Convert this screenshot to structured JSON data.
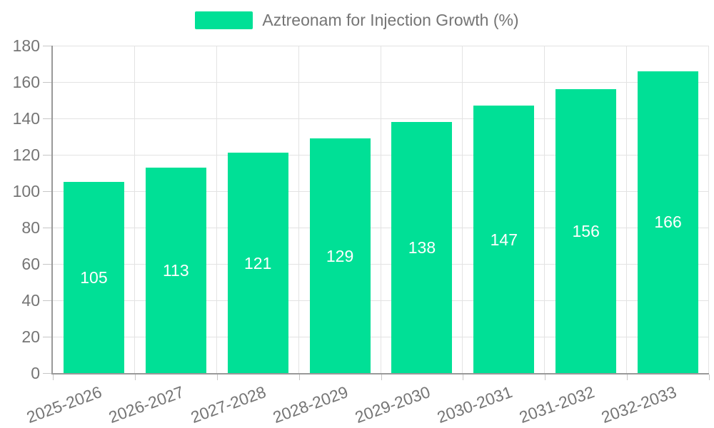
{
  "legend": {
    "label": "Aztreonam for Injection Growth (%)"
  },
  "chart_data": {
    "type": "bar",
    "title": "Aztreonam for Injection Growth (%)",
    "categories": [
      "2025-2026",
      "2026-2027",
      "2027-2028",
      "2028-2029",
      "2029-2030",
      "2030-2031",
      "2031-2032",
      "2032-2033"
    ],
    "values": [
      105,
      113,
      121,
      129,
      138,
      147,
      156,
      166
    ],
    "series": [
      {
        "name": "Aztreonam for Injection Growth (%)",
        "values": [
          105,
          113,
          121,
          129,
          138,
          147,
          156,
          166
        ]
      }
    ],
    "xlabel": "",
    "ylabel": "",
    "ylim": [
      0,
      180
    ],
    "ytick_step": 20,
    "yticks": [
      0,
      20,
      40,
      60,
      80,
      100,
      120,
      140,
      160,
      180
    ],
    "grid": true,
    "legend_position": "top-center",
    "bar_value_labels_inside": true,
    "colors": {
      "bar": "#00E096",
      "bar_label": "#FFFFFF",
      "axis_text": "#757575",
      "gridline": "#E3E3E3",
      "axis_line": "#999999",
      "tick": "#C6C6C6",
      "background": "#FFFFFF"
    }
  }
}
